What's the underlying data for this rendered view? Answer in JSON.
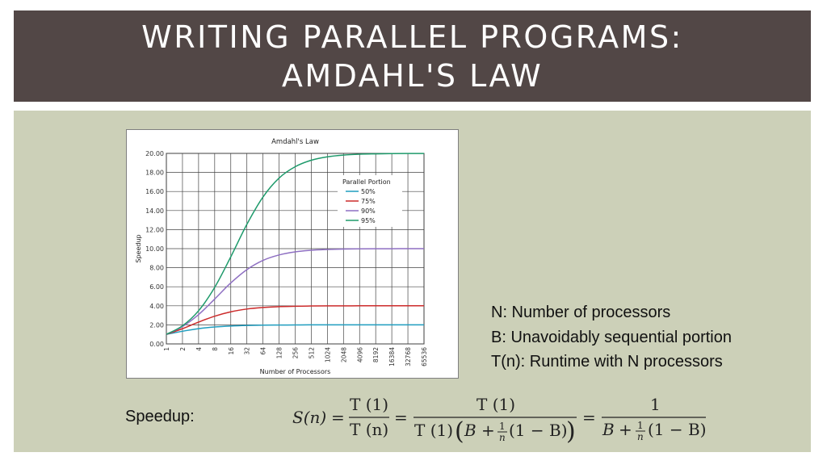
{
  "slide": {
    "title_line1": "WRITING PARALLEL PROGRAMS:",
    "title_line2": "AMDAHL'S LAW"
  },
  "definitions": [
    "N: Number of processors",
    "B: Unavoidably sequential portion",
    "T(n): Runtime with N processors"
  ],
  "speedup_label": "Speedup:",
  "formula": {
    "lhs": "S(n)",
    "eq": "=",
    "t1": "T (1)",
    "tn": "T (n)",
    "b": "B",
    "plus": "+",
    "one": "1",
    "n": "n",
    "one_minus_b": "(1 − B)",
    "big_open": "(",
    "big_close": ")"
  },
  "chart_data": {
    "type": "line",
    "title": "Amdahl's Law",
    "xlabel": "Number of Processors",
    "ylabel": "Speedup",
    "x_scale": "log2",
    "x": [
      1,
      2,
      4,
      8,
      16,
      32,
      64,
      128,
      256,
      512,
      1024,
      2048,
      4096,
      8192,
      16384,
      32768,
      65536
    ],
    "x_tick_labels": [
      "1",
      "2",
      "4",
      "8",
      "16",
      "32",
      "64",
      "128",
      "256",
      "512",
      "1024",
      "2048",
      "4096",
      "8192",
      "16384",
      "32768",
      "65536"
    ],
    "ylim": [
      0,
      20
    ],
    "y_ticks": [
      "0.00",
      "2.00",
      "4.00",
      "6.00",
      "8.00",
      "10.00",
      "12.00",
      "14.00",
      "16.00",
      "18.00",
      "20.00"
    ],
    "grid": true,
    "legend_title": "Parallel Portion",
    "legend_position": "upper-right",
    "series": [
      {
        "name": "50%",
        "color": "#1f9dbf",
        "values": [
          1.0,
          1.33,
          1.6,
          1.78,
          1.88,
          1.94,
          1.97,
          1.98,
          1.99,
          2.0,
          2.0,
          2.0,
          2.0,
          2.0,
          2.0,
          2.0,
          2.0
        ]
      },
      {
        "name": "75%",
        "color": "#cc2b2b",
        "values": [
          1.0,
          1.6,
          2.29,
          2.91,
          3.37,
          3.66,
          3.82,
          3.91,
          3.95,
          3.98,
          3.99,
          3.99,
          4.0,
          4.0,
          4.0,
          4.0,
          4.0
        ]
      },
      {
        "name": "90%",
        "color": "#8e6fc2",
        "values": [
          1.0,
          1.82,
          3.08,
          4.71,
          6.4,
          7.8,
          8.77,
          9.34,
          9.66,
          9.83,
          9.91,
          9.96,
          9.98,
          9.99,
          9.99,
          10.0,
          10.0
        ]
      },
      {
        "name": "95%",
        "color": "#1e9a6b",
        "values": [
          1.0,
          1.9,
          3.48,
          5.93,
          9.14,
          12.55,
          15.42,
          17.41,
          18.6,
          19.28,
          19.64,
          19.82,
          19.91,
          19.95,
          19.98,
          19.99,
          19.99
        ]
      }
    ]
  }
}
